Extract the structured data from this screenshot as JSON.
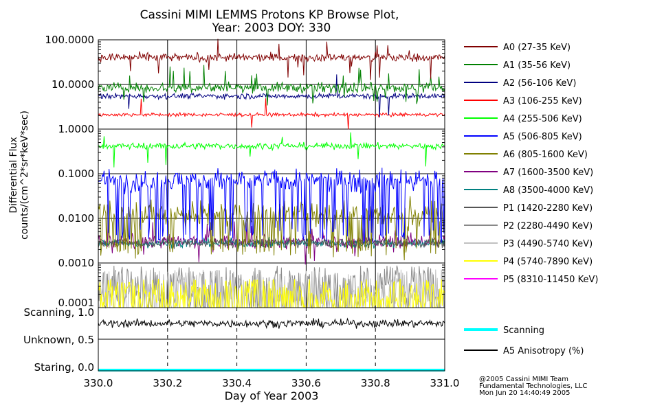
{
  "chart_data": {
    "type": "line",
    "title": "Cassini MIMI LEMMS Protons KP Browse Plot,",
    "subtitle": "Year: 2003 DOY: 330",
    "xlabel": "Day of Year 2003",
    "ylabel_line1": "Differential Flux",
    "ylabel_line2": "counts/(cm^2*sr*keV*sec)",
    "xlim": [
      330.0,
      331.0
    ],
    "x_ticks": [
      {
        "value": 330.0,
        "label": "330.0"
      },
      {
        "value": 330.2,
        "label": "330.2"
      },
      {
        "value": 330.4,
        "label": "330.4"
      },
      {
        "value": 330.6,
        "label": "330.6"
      },
      {
        "value": 330.8,
        "label": "330.8"
      },
      {
        "value": 331.0,
        "label": "331.0"
      }
    ],
    "flux_panel": {
      "yscale": "log",
      "ylim": [
        0.0001,
        100.0
      ],
      "y_ticks": [
        {
          "value": 100,
          "label": "100.0000"
        },
        {
          "value": 10,
          "label": "10.0000"
        },
        {
          "value": 1,
          "label": "1.0000"
        },
        {
          "value": 0.1,
          "label": "0.1000"
        },
        {
          "value": 0.01,
          "label": "0.0100"
        },
        {
          "value": 0.001,
          "label": "0.0010"
        },
        {
          "value": 0.0001,
          "label": "0.0001"
        }
      ],
      "series": [
        {
          "name": "A0 (27-35 KeV)",
          "color": "#800000",
          "level": 40,
          "spread": 0.09,
          "spikes": 0.02,
          "style": "noise"
        },
        {
          "name": "A1 (35-56 KeV)",
          "color": "#008000",
          "level": 8.5,
          "spread": 0.11,
          "spikes": 0.06,
          "style": "noise"
        },
        {
          "name": "A2 (56-106 KeV)",
          "color": "#000080",
          "level": 5.5,
          "spread": 0.06,
          "spikes": 0.02,
          "style": "noise"
        },
        {
          "name": "A3 (106-255 KeV)",
          "color": "#ff0000",
          "level": 2.1,
          "spread": 0.04,
          "spikes": 0.01,
          "style": "noise"
        },
        {
          "name": "A4 (255-506 KeV)",
          "color": "#00ff00",
          "level": 0.42,
          "spread": 0.07,
          "spikes": 0.02,
          "style": "noise"
        },
        {
          "name": "A5 (506-805 KeV)",
          "color": "#0000ff",
          "level": 0.07,
          "spread": 0.25,
          "spikes": 0.0,
          "style": "drops",
          "drop_to": 0.004
        },
        {
          "name": "A6 (805-1600 KeV)",
          "color": "#808000",
          "level": 0.012,
          "spread": 0.3,
          "spikes": 0.0,
          "style": "drops",
          "drop_to": 0.002
        },
        {
          "name": "A7 (1600-3500 KeV)",
          "color": "#800080",
          "level": 0.003,
          "spread": 0.15,
          "spikes": 0.03,
          "style": "sparse"
        },
        {
          "name": "A8 (3500-4000 KeV)",
          "color": "#008080",
          "level": 0.0028,
          "spread": 0.1,
          "spikes": 0.0,
          "style": "noise"
        },
        {
          "name": "P1 (1420-2280 KeV)",
          "color": "#555555",
          "level": 0.0028,
          "spread": 0.1,
          "spikes": 0.0,
          "style": "noise"
        },
        {
          "name": "P2 (2280-4490 KeV)",
          "color": "#888888",
          "level": 0.00022,
          "spread": 0.3,
          "spikes": 0.0,
          "style": "hash"
        },
        {
          "name": "P3 (4490-5740 KeV)",
          "color": "#c0c0c0",
          "level": 0.00018,
          "spread": 0.3,
          "spikes": 0.0,
          "style": "hash"
        },
        {
          "name": "P4 (5740-7890 KeV)",
          "color": "#ffff00",
          "level": 0.00014,
          "spread": 0.25,
          "spikes": 0.0,
          "style": "hash"
        },
        {
          "name": "P5 (8310-11450 KeV)",
          "color": "#ff00ff",
          "level": 0.0001,
          "spread": 0.0,
          "spikes": 0.0,
          "style": "none"
        }
      ]
    },
    "status_panel": {
      "y_ticks": [
        {
          "value": 1.0,
          "label": "Scanning, 1.0"
        },
        {
          "value": 0.5,
          "label": "Unknown, 0.5"
        },
        {
          "value": 0.0,
          "label": "Staring, 0.0"
        }
      ],
      "ylim": [
        0.0,
        1.0
      ],
      "series": [
        {
          "name": "Scanning",
          "color": "#00ffff",
          "value": 0.0
        },
        {
          "name": "A5 Anisotropy (%)",
          "color": "#000000",
          "level": 0.8,
          "spread": 0.07
        }
      ]
    },
    "credits": [
      "@2005 Cassini MIMI Team",
      "Fundamental Technologies, LLC",
      "Mon Jun 20 14:40:49 2005"
    ]
  }
}
